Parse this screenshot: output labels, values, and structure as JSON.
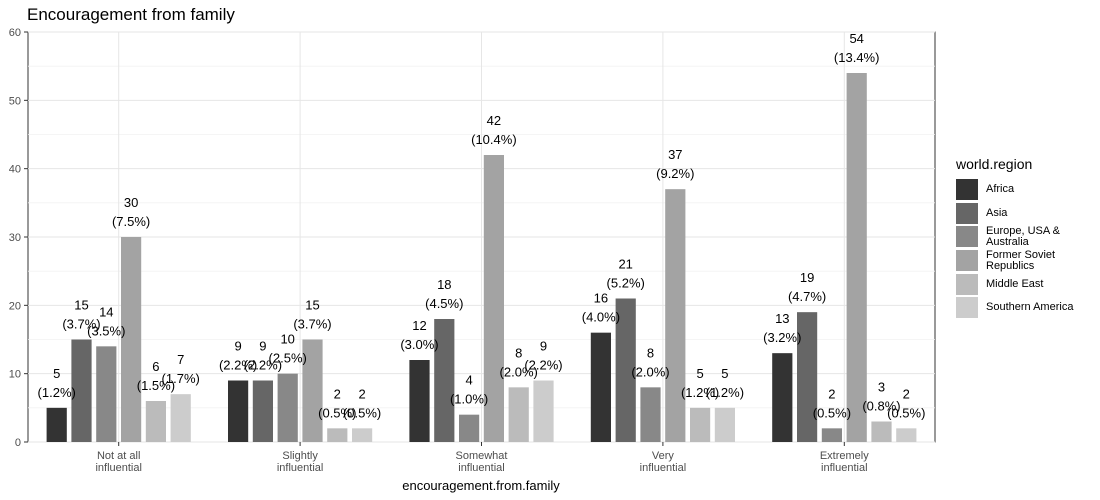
{
  "chart_data": {
    "type": "bar",
    "title": "Encouragement from family",
    "xlabel": "encouragement.from.family",
    "ylabel": "",
    "ylim": [
      0,
      60
    ],
    "yticks": [
      0,
      10,
      20,
      30,
      40,
      50,
      60
    ],
    "grid": true,
    "legend_position": "right",
    "legend_title": "world.region",
    "categories": [
      [
        "Not at all",
        "influential"
      ],
      [
        "Slightly",
        "influential"
      ],
      [
        "Somewhat",
        "influential"
      ],
      [
        "Very",
        "influential"
      ],
      [
        "Extremely",
        "influential"
      ]
    ],
    "series": [
      {
        "name": "Africa",
        "legend_lines": [
          "Africa"
        ],
        "color": "#333333",
        "values": [
          5,
          9,
          12,
          16,
          13
        ],
        "labels": [
          "(1.2%)",
          "(2.2%)",
          "(3.0%)",
          "(4.0%)",
          "(3.2%)"
        ]
      },
      {
        "name": "Asia",
        "legend_lines": [
          "Asia"
        ],
        "color": "#666666",
        "values": [
          15,
          9,
          18,
          21,
          19
        ],
        "labels": [
          "(3.7%)",
          "(2.2%)",
          "(4.5%)",
          "(5.2%)",
          "(4.7%)"
        ]
      },
      {
        "name": "Europe, USA & Australia",
        "legend_lines": [
          "Europe, USA &",
          "Australia"
        ],
        "color": "#888888",
        "values": [
          14,
          10,
          4,
          8,
          2
        ],
        "labels": [
          "(3.5%)",
          "(2.5%)",
          "(1.0%)",
          "(2.0%)",
          "(0.5%)"
        ]
      },
      {
        "name": "Former Soviet Republics",
        "legend_lines": [
          "Former Soviet",
          "Republics"
        ],
        "color": "#a3a3a3",
        "values": [
          30,
          15,
          42,
          37,
          54
        ],
        "labels": [
          "(7.5%)",
          "(3.7%)",
          "(10.4%)",
          "(9.2%)",
          "(13.4%)"
        ]
      },
      {
        "name": "Middle East",
        "legend_lines": [
          "Middle East"
        ],
        "color": "#bbbbbb",
        "values": [
          6,
          2,
          8,
          5,
          3
        ],
        "labels": [
          "(1.5%)",
          "(0.5%)",
          "(2.0%)",
          "(1.2%)",
          "(0.8%)"
        ]
      },
      {
        "name": "Southern America",
        "legend_lines": [
          "Southern America"
        ],
        "color": "#cccccc",
        "values": [
          7,
          2,
          9,
          5,
          2
        ],
        "labels": [
          "(1.7%)",
          "(0.5%)",
          "(2.2%)",
          "(1.2%)",
          "(0.5%)"
        ]
      }
    ]
  }
}
